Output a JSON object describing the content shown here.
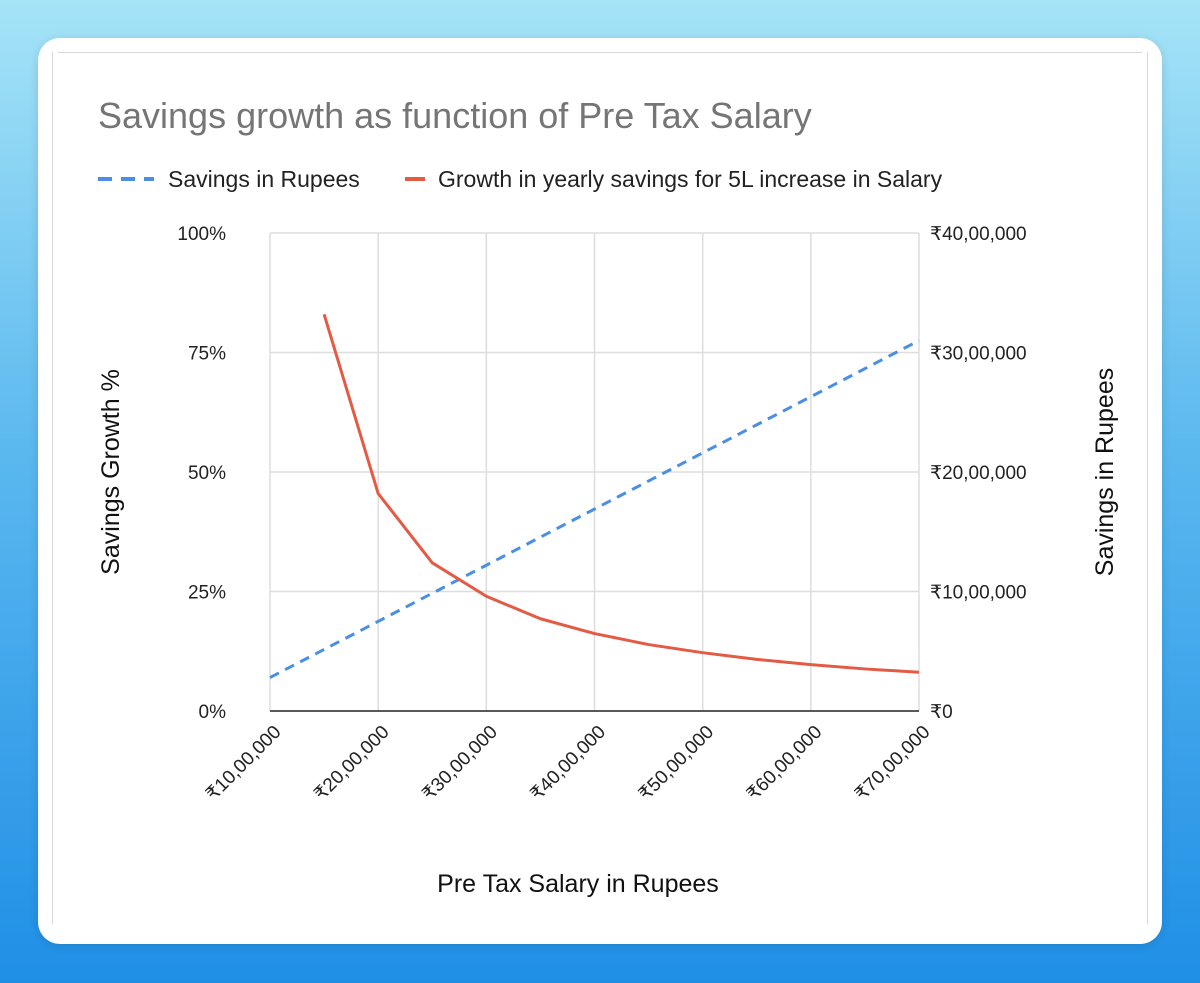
{
  "chart_data": {
    "type": "line",
    "title": "Savings growth as function of Pre Tax Salary",
    "xlabel": "Pre Tax Salary in Rupees",
    "ylabel_left": "Savings  Growth %",
    "ylabel_right": "Savings in Rupees",
    "x_ticks": [
      "₹10,00,000",
      "₹20,00,000",
      "₹30,00,000",
      "₹40,00,000",
      "₹50,00,000",
      "₹60,00,000",
      "₹70,00,000"
    ],
    "y_left_ticks": [
      "0%",
      "25%",
      "50%",
      "75%",
      "100%"
    ],
    "y_right_ticks": [
      "₹0",
      "₹10,00,000",
      "₹20,00,000",
      "₹30,00,000",
      "₹40,00,000"
    ],
    "xlim": [
      1000000,
      7000000
    ],
    "ylim_left": [
      0,
      100
    ],
    "ylim_right": [
      0,
      4000000
    ],
    "grid": true,
    "legend_position": "top",
    "series": [
      {
        "name": "Savings in Rupees",
        "axis": "right",
        "color": "#4a8fe3",
        "dash": true,
        "x": [
          1000000,
          7000000
        ],
        "values": [
          280000,
          3100000
        ]
      },
      {
        "name": "Growth in yearly savings for 5L increase in Salary",
        "axis": "left",
        "color": "#e35b45",
        "dash": false,
        "x": [
          1500000,
          2000000,
          2500000,
          3000000,
          3500000,
          4000000,
          4500000,
          5000000,
          5500000,
          6000000,
          6500000,
          7000000
        ],
        "values": [
          83,
          45.5,
          31,
          24,
          19.3,
          16.2,
          13.9,
          12.2,
          10.8,
          9.7,
          8.8,
          8.1
        ]
      }
    ]
  }
}
